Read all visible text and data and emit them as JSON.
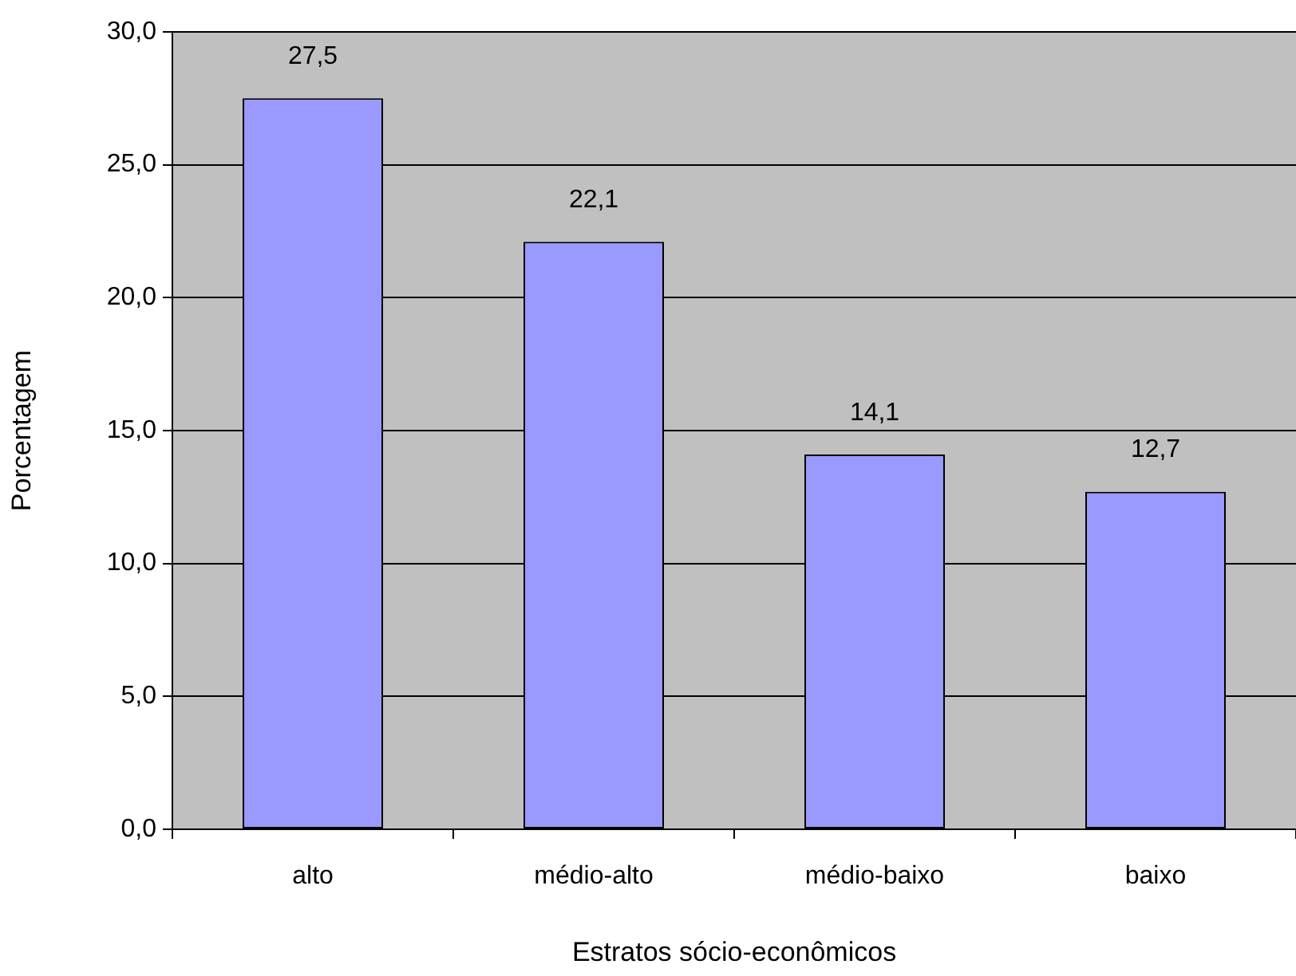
{
  "chart_data": {
    "type": "bar",
    "xlabel": "Estratos sócio-econômicos",
    "ylabel": "Porcentagem",
    "categories": [
      "alto",
      "médio-alto",
      "médio-baixo",
      "baixo"
    ],
    "values": [
      27.5,
      22.1,
      14.1,
      12.7
    ],
    "color": "#9999ff",
    "value_labels": [
      "27,5",
      "22,1",
      "14,1",
      "12,7"
    ],
    "ylim": [
      0,
      30
    ],
    "yticks": [
      {
        "value": 0,
        "label": "0,0"
      },
      {
        "value": 5,
        "label": "5,0"
      },
      {
        "value": 10,
        "label": "10,0"
      },
      {
        "value": 15,
        "label": "15,0"
      },
      {
        "value": 20,
        "label": "20,0"
      },
      {
        "value": 25,
        "label": "25,0"
      },
      {
        "value": 30,
        "label": "30,0"
      }
    ],
    "grid": "y",
    "legend": false
  }
}
